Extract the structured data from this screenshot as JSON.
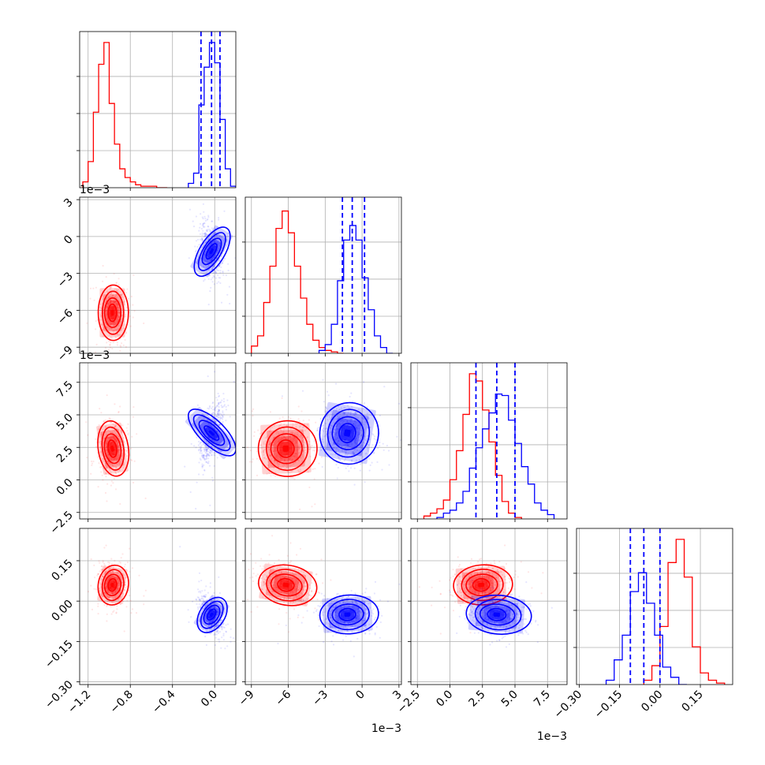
{
  "colors": {
    "red": "#ff0000",
    "blue": "#0000ff",
    "grid": "#b0b0b0",
    "axis": "#000000"
  },
  "chart_data": {
    "type": "corner",
    "grid": true,
    "params": [
      {
        "label": "",
        "range": [
          -1.28,
          0.2
        ],
        "ticks": [
          -1.2,
          -0.8,
          -0.4,
          0.0
        ],
        "tick_labels": [
          "−1.2",
          "−0.8",
          "−0.4",
          "0.0"
        ],
        "offset": ""
      },
      {
        "label": "",
        "range": [
          -9.5,
          3.2
        ],
        "ticks": [
          -9,
          -6,
          -3,
          0,
          3
        ],
        "tick_labels": [
          "−9",
          "−6",
          "−3",
          "0",
          "3"
        ],
        "offset": "1e−3"
      },
      {
        "label": "",
        "range": [
          -3.0,
          9.0
        ],
        "ticks": [
          -2.5,
          0.0,
          2.5,
          5.0,
          7.5
        ],
        "tick_labels": [
          "−2.5",
          "0.0",
          "2.5",
          "5.0",
          "7.5"
        ],
        "offset": "1e−3"
      },
      {
        "label": "",
        "range": [
          -0.31,
          0.27
        ],
        "ticks": [
          -0.3,
          -0.15,
          0.0,
          0.15
        ],
        "tick_labels": [
          "−0.30",
          "−0.15",
          "0.00",
          "0.15"
        ],
        "offset": ""
      }
    ],
    "series": [
      {
        "color": "red",
        "means": [
          -0.97,
          -6.2,
          2.4,
          0.06
        ],
        "sigmas": [
          0.06,
          1.0,
          0.95,
          0.033
        ],
        "histograms": [
          {
            "edges": [
              -1.25,
              -1.2,
              -1.15,
              -1.1,
              -1.05,
              -1.0,
              -0.95,
              -0.9,
              -0.85,
              -0.8,
              -0.75,
              -0.7,
              -0.65,
              -0.6,
              -0.55,
              -0.5,
              -0.45
            ],
            "counts": [
              0.04,
              0.18,
              0.52,
              0.85,
              1.0,
              0.58,
              0.3,
              0.13,
              0.07,
              0.04,
              0.02,
              0.01,
              0.01,
              0.01,
              0.0,
              0.0
            ]
          },
          {
            "edges": [
              -9.0,
              -8.5,
              -8.0,
              -7.5,
              -7.0,
              -6.5,
              -6.0,
              -5.5,
              -5.0,
              -4.5,
              -4.0,
              -3.5,
              -3.0,
              -2.5,
              -2.0,
              -1.5
            ],
            "counts": [
              0.05,
              0.12,
              0.35,
              0.6,
              0.86,
              0.98,
              0.83,
              0.6,
              0.38,
              0.2,
              0.09,
              0.04,
              0.02,
              0.01,
              0.0
            ]
          },
          {
            "edges": [
              -2.0,
              -1.5,
              -1.0,
              -0.5,
              0.0,
              0.5,
              1.0,
              1.5,
              2.0,
              2.5,
              3.0,
              3.5,
              4.0,
              4.5,
              5.0,
              5.5
            ],
            "counts": [
              0.02,
              0.04,
              0.07,
              0.13,
              0.27,
              0.47,
              0.72,
              1.0,
              0.95,
              0.75,
              0.53,
              0.3,
              0.12,
              0.04,
              0.01
            ]
          },
          {
            "edges": [
              -0.06,
              -0.03,
              0.0,
              0.03,
              0.06,
              0.09,
              0.12,
              0.15,
              0.18,
              0.21,
              0.24
            ],
            "counts": [
              0.03,
              0.13,
              0.4,
              0.84,
              1.0,
              0.74,
              0.26,
              0.08,
              0.03,
              0.01
            ]
          }
        ]
      },
      {
        "color": "blue",
        "means": [
          -0.03,
          -1.2,
          3.6,
          -0.05
        ],
        "sigmas": [
          0.05,
          1.0,
          1.05,
          0.032
        ],
        "quantiles": [
          [
            -0.13,
            -0.03,
            0.05
          ],
          [
            -1.6,
            -0.8,
            0.2
          ],
          [
            2.0,
            3.6,
            5.0
          ],
          [
            -0.11,
            -0.06,
            0.0
          ]
        ],
        "histograms": [
          {
            "edges": [
              -0.25,
              -0.2,
              -0.15,
              -0.1,
              -0.05,
              0.0,
              0.05,
              0.1,
              0.15,
              0.2
            ],
            "counts": [
              0.03,
              0.1,
              0.57,
              0.83,
              1.0,
              0.86,
              0.47,
              0.13,
              0.01
            ]
          },
          {
            "edges": [
              -3.5,
              -3.0,
              -2.5,
              -2.0,
              -1.5,
              -1.0,
              -0.5,
              0.0,
              0.5,
              1.0,
              1.5,
              2.0,
              2.5
            ],
            "counts": [
              0.02,
              0.06,
              0.2,
              0.5,
              0.78,
              0.88,
              0.78,
              0.52,
              0.3,
              0.12,
              0.04,
              0.0
            ]
          },
          {
            "edges": [
              -1.0,
              -0.5,
              0.0,
              0.5,
              1.0,
              1.5,
              2.0,
              2.5,
              3.0,
              3.5,
              4.0,
              4.5,
              5.0,
              5.5,
              6.0,
              6.5,
              7.0,
              7.5,
              8.0
            ],
            "counts": [
              0.01,
              0.04,
              0.06,
              0.11,
              0.19,
              0.35,
              0.49,
              0.62,
              0.73,
              0.86,
              0.85,
              0.68,
              0.52,
              0.36,
              0.24,
              0.11,
              0.06,
              0.03
            ]
          },
          {
            "edges": [
              -0.2,
              -0.17,
              -0.14,
              -0.11,
              -0.08,
              -0.05,
              -0.02,
              0.01,
              0.04,
              0.07,
              0.1
            ],
            "counts": [
              0.03,
              0.17,
              0.34,
              0.64,
              0.77,
              0.56,
              0.34,
              0.12,
              0.05,
              0.0
            ]
          }
        ]
      }
    ]
  }
}
